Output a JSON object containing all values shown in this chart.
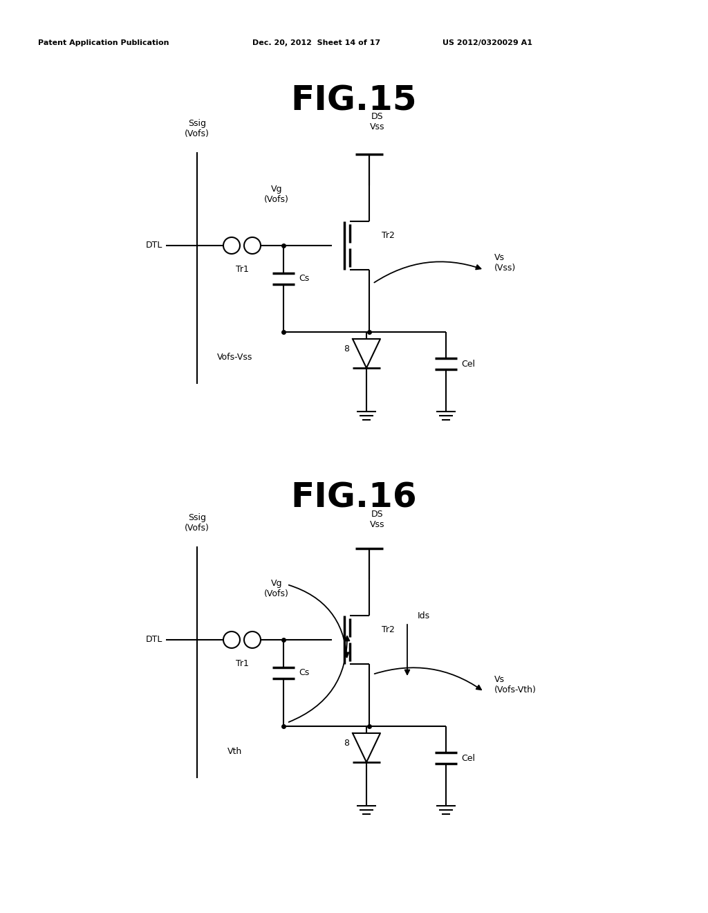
{
  "bg_color": "#ffffff",
  "line_color": "#000000",
  "header_text1": "Patent Application Publication",
  "header_text2": "Dec. 20, 2012  Sheet 14 of 17",
  "header_text3": "US 2012/0320029 A1",
  "fig15_title": "FIG.15",
  "fig16_title": "FIG.16"
}
